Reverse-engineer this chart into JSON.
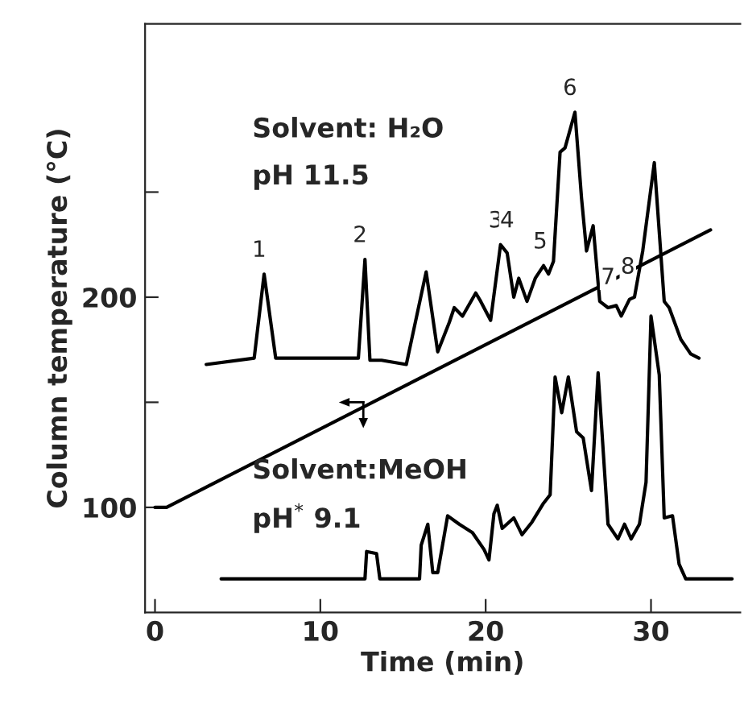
{
  "chart_data": {
    "type": "line",
    "xlabel": "Time (min)",
    "ylabel": "Column temperature (°C)",
    "xlim": [
      -0.6,
      35.4
    ],
    "ylim": [
      50,
      330
    ],
    "xticks": [
      0,
      10,
      20,
      30
    ],
    "yticks": [
      100,
      {
        "value": 150,
        "label": null
      },
      200,
      {
        "value": 250,
        "label": null
      }
    ],
    "grid": false,
    "legend": false,
    "marker": "none",
    "line_style": "solid",
    "series": [
      {
        "color": "#000000",
        "x": [
          0,
          0.7,
          33.6
        ],
        "values": [
          100,
          100,
          232
        ]
      },
      {
        "color": "#000000",
        "x": [
          3.1,
          6.0,
          6.6,
          7.3,
          12.3,
          12.7,
          13.0,
          13.7,
          15.2,
          16.4,
          17.1,
          17.8,
          18.1,
          18.6,
          19.4,
          19.7,
          20.3,
          20.9,
          21.3,
          21.7,
          22.0,
          22.5,
          23.0,
          23.5,
          23.8,
          24.1,
          24.5,
          24.8,
          25.4,
          25.8,
          26.1,
          26.5,
          26.9,
          27.4,
          27.9,
          28.2,
          28.7,
          29.0,
          29.5,
          30.2,
          30.8,
          31.1,
          31.8,
          32.4,
          32.9
        ],
        "values": [
          168,
          171,
          211,
          171,
          171,
          218,
          170,
          170,
          168,
          212,
          174,
          188,
          195,
          191,
          202,
          198,
          189,
          225,
          221,
          200,
          209,
          198,
          209,
          215,
          211,
          217,
          269,
          271,
          288,
          247,
          222,
          234,
          198,
          195,
          196,
          191,
          199,
          200,
          222,
          264,
          198,
          195,
          180,
          173,
          171
        ]
      },
      {
        "color": "#000000",
        "x": [
          4.0,
          12.7,
          12.8,
          13.4,
          13.6,
          16.0,
          16.1,
          16.5,
          16.8,
          17.1,
          17.7,
          18.4,
          19.2,
          19.9,
          20.2,
          20.5,
          20.7,
          21.0,
          21.7,
          22.2,
          22.8,
          23.5,
          23.9,
          24.2,
          24.6,
          25.0,
          25.5,
          25.9,
          26.4,
          26.8,
          27.4,
          28.0,
          28.4,
          28.8,
          29.3,
          29.7,
          30.0,
          30.5,
          30.8,
          31.3,
          31.7,
          32.1,
          34.9
        ],
        "values": [
          66,
          66,
          79,
          78,
          66,
          66,
          82,
          92,
          69,
          69,
          96,
          92,
          88,
          80,
          75,
          97,
          101,
          90,
          95,
          87,
          93,
          102,
          106,
          162,
          145,
          162,
          136,
          133,
          108,
          164,
          92,
          85,
          92,
          85,
          92,
          112,
          191,
          163,
          95,
          96,
          73,
          66,
          66
        ]
      }
    ],
    "annotations": [
      {
        "text": "1",
        "x": 6.6,
        "y": 211
      },
      {
        "text": "2",
        "x": 12.7,
        "y": 218
      },
      {
        "text": "3",
        "x": 20.9,
        "y": 225
      },
      {
        "text": "4",
        "x": 21.6,
        "y": 225
      },
      {
        "text": "5",
        "x": 23.6,
        "y": 215
      },
      {
        "text": "6",
        "x": 25.4,
        "y": 288
      },
      {
        "text": "7",
        "x": 27.7,
        "y": 198
      },
      {
        "text": "8",
        "x": 28.9,
        "y": 203
      },
      "Solvent: H₂O",
      "pH 11.5",
      "Solvent:MeOH",
      "pH$^{*}$ 9.1"
    ]
  }
}
